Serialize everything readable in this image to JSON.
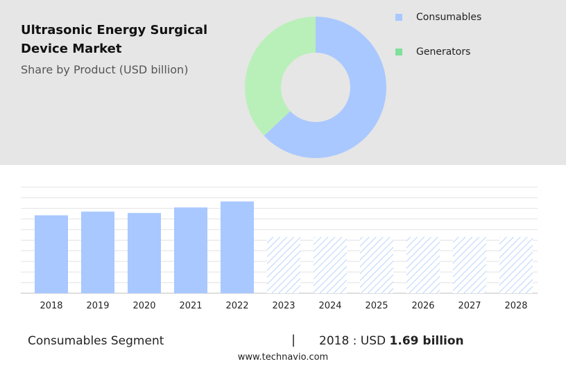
{
  "header": {
    "title": "Ultrasonic Energy Surgical Device Market",
    "subtitle": "Share by Product (USD billion)"
  },
  "legend": [
    {
      "label": "Consumables",
      "color": "#a8c8ff"
    },
    {
      "label": "Generators",
      "color": "#7fe09a"
    }
  ],
  "colors": {
    "consumables_donut": "#a9c8ff",
    "generators_donut": "#b9f0b9",
    "bar": "#a8c8ff",
    "forecast_hatch": "#a8c8ff",
    "background_band": "#e6e6e6"
  },
  "chart_data": [
    {
      "type": "pie",
      "categories": [
        "Consumables",
        "Generators"
      ],
      "values": [
        63,
        37
      ],
      "donut": true
    },
    {
      "type": "bar",
      "categories": [
        "2018",
        "2019",
        "2020",
        "2021",
        "2022",
        "2023",
        "2024",
        "2025",
        "2026",
        "2027",
        "2028"
      ],
      "values": [
        1.69,
        1.77,
        1.74,
        1.86,
        1.99,
        null,
        null,
        null,
        null,
        null,
        null
      ],
      "forecast": [
        false,
        false,
        false,
        false,
        false,
        true,
        true,
        true,
        true,
        true,
        true
      ],
      "forecast_placeholder_value": 1.22,
      "ylim": [
        0,
        2.3
      ],
      "grid": true
    }
  ],
  "footer": {
    "segment_label": "Consumables Segment",
    "separator": "|",
    "year_prefix": "2018 : USD ",
    "value": "1.69 billion"
  },
  "source": "www.technavio.com"
}
